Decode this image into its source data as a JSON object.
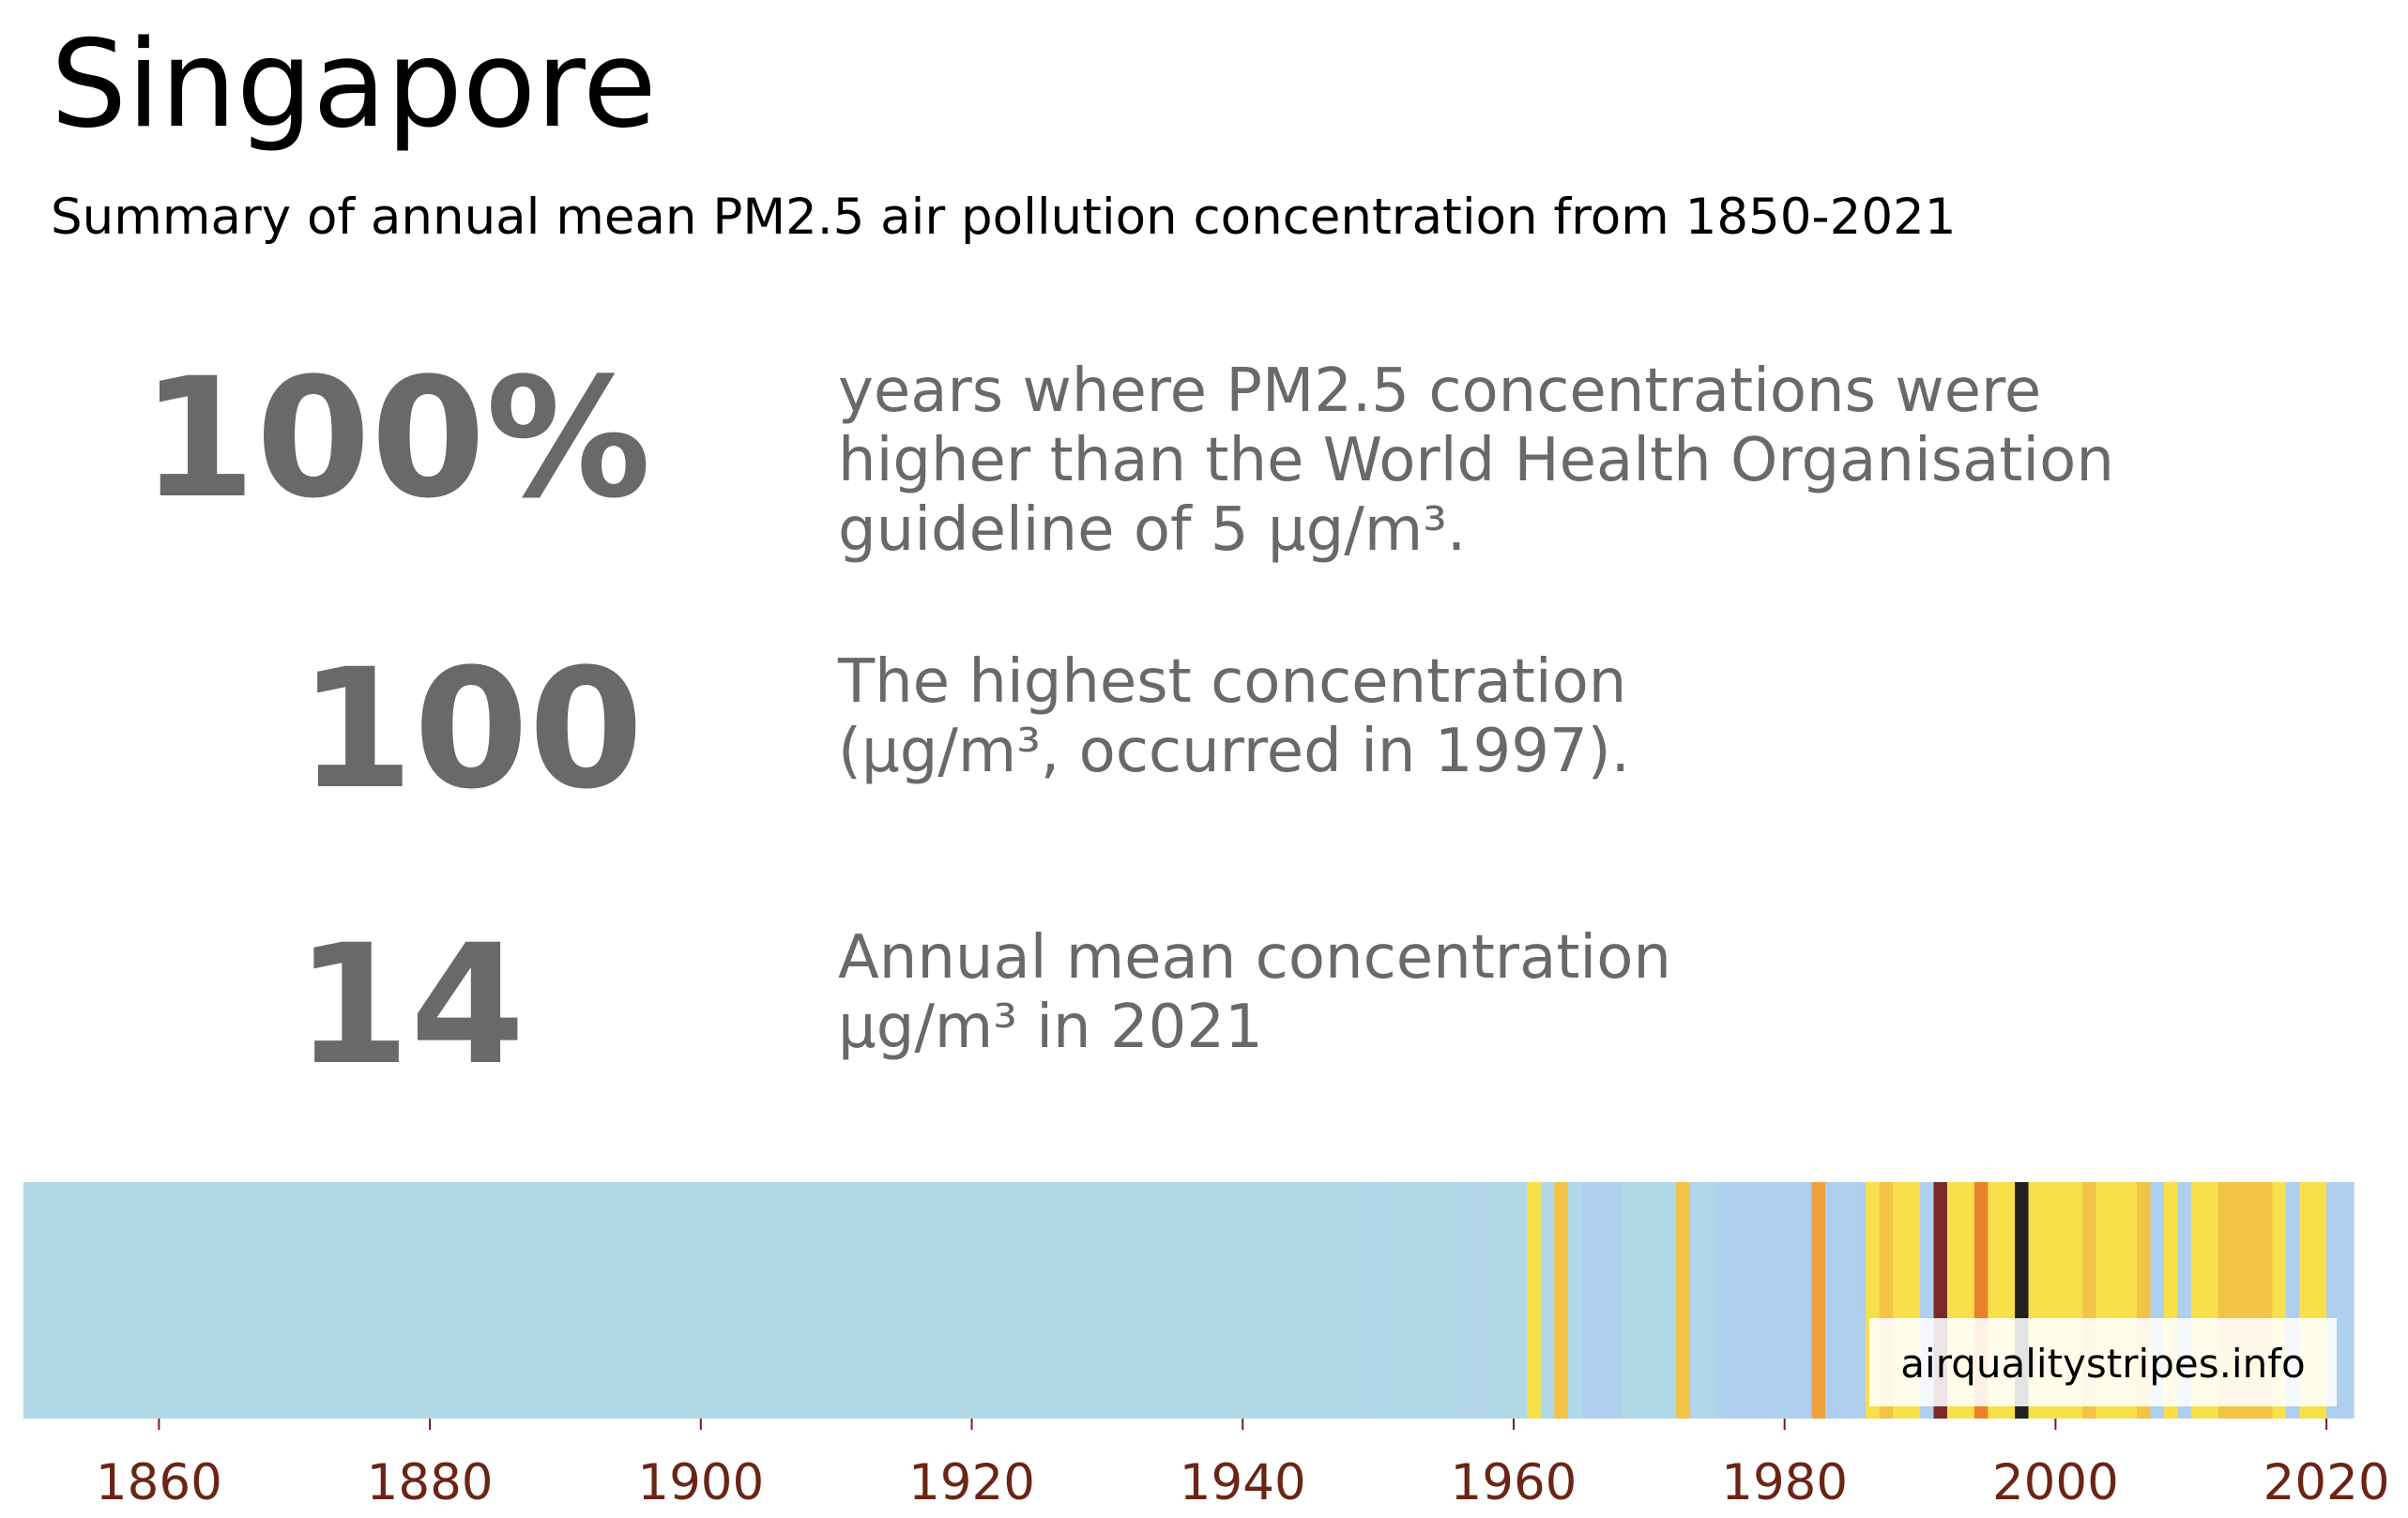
{
  "header": {
    "title": "Singapore",
    "subtitle": "Summary of annual mean PM2.5 air pollution concentration from 1850-2021"
  },
  "stats": [
    {
      "value": "100%",
      "description_lines": [
        "years where PM2.5 concentrations were",
        "higher than the World Health Organisation",
        "guideline of 5 µg/m³."
      ]
    },
    {
      "value": "100",
      "description_lines": [
        "The highest concentration",
        "(µg/m³, occurred in 1997)."
      ]
    },
    {
      "value": "14",
      "description_lines": [
        "Annual mean concentration",
        "µg/m³ in 2021"
      ]
    }
  ],
  "watermark": "airqualitystripes.info",
  "colors": {
    "text_gray": "#696969",
    "tick_color": "#6b2415",
    "light_blue": "#b0d9e8",
    "pale_blue": "#aecfee",
    "yellow": "#f8e04a",
    "amber": "#f2c346",
    "orange": "#f2a03a",
    "dark_orange": "#e8822a",
    "maroon": "#7a2a2a",
    "black": "#222222"
  },
  "chart_data": {
    "type": "heatmap",
    "title": "",
    "xlim": [
      1850,
      2022
    ],
    "x_ticks": [
      "1860",
      "1880",
      "1900",
      "1920",
      "1940",
      "1960",
      "1980",
      "2000",
      "2020"
    ],
    "stripes": [
      {
        "start": 1850,
        "end": 1949,
        "color": "#b0d9e8"
      },
      {
        "start": 1949,
        "end": 1950,
        "color": "#b2d5ec"
      },
      {
        "start": 1950,
        "end": 1956,
        "color": "#b0d9e8"
      },
      {
        "start": 1956,
        "end": 1958,
        "color": "#b2d5ec"
      },
      {
        "start": 1958,
        "end": 1961,
        "color": "#b0d9e8"
      },
      {
        "start": 1961,
        "end": 1962,
        "color": "#f8e04a"
      },
      {
        "start": 1962,
        "end": 1963,
        "color": "#b0d9e8"
      },
      {
        "start": 1963,
        "end": 1964,
        "color": "#f2c346"
      },
      {
        "start": 1964,
        "end": 1965,
        "color": "#b0d9e8"
      },
      {
        "start": 1965,
        "end": 1968,
        "color": "#aecfee"
      },
      {
        "start": 1968,
        "end": 1972,
        "color": "#b0d9e8"
      },
      {
        "start": 1972,
        "end": 1973,
        "color": "#f2c346"
      },
      {
        "start": 1973,
        "end": 1974,
        "color": "#b2d5ec"
      },
      {
        "start": 1974,
        "end": 1975,
        "color": "#b0d9e8"
      },
      {
        "start": 1975,
        "end": 1982,
        "color": "#aecfee"
      },
      {
        "start": 1982,
        "end": 1983,
        "color": "#f2a03a"
      },
      {
        "start": 1983,
        "end": 1986,
        "color": "#aecfee"
      },
      {
        "start": 1986,
        "end": 1987,
        "color": "#f8e04a"
      },
      {
        "start": 1987,
        "end": 1988,
        "color": "#f2c346"
      },
      {
        "start": 1988,
        "end": 1990,
        "color": "#f8e04a"
      },
      {
        "start": 1990,
        "end": 1991,
        "color": "#aecfee"
      },
      {
        "start": 1991,
        "end": 1992,
        "color": "#7a2a2a"
      },
      {
        "start": 1992,
        "end": 1994,
        "color": "#f8e04a"
      },
      {
        "start": 1994,
        "end": 1995,
        "color": "#e8822a"
      },
      {
        "start": 1995,
        "end": 1997,
        "color": "#f8e04a"
      },
      {
        "start": 1997,
        "end": 1998,
        "color": "#222222"
      },
      {
        "start": 1998,
        "end": 2002,
        "color": "#f8e04a"
      },
      {
        "start": 2002,
        "end": 2003,
        "color": "#f2c346"
      },
      {
        "start": 2003,
        "end": 2006,
        "color": "#f8e04a"
      },
      {
        "start": 2006,
        "end": 2007,
        "color": "#f2c346"
      },
      {
        "start": 2007,
        "end": 2008,
        "color": "#aecfee"
      },
      {
        "start": 2008,
        "end": 2009,
        "color": "#f8e04a"
      },
      {
        "start": 2009,
        "end": 2010,
        "color": "#aecfee"
      },
      {
        "start": 2010,
        "end": 2012,
        "color": "#f8e04a"
      },
      {
        "start": 2012,
        "end": 2016,
        "color": "#f2c346"
      },
      {
        "start": 2016,
        "end": 2017,
        "color": "#f8e04a"
      },
      {
        "start": 2017,
        "end": 2018,
        "color": "#aecfee"
      },
      {
        "start": 2018,
        "end": 2020,
        "color": "#f8e04a"
      },
      {
        "start": 2020,
        "end": 2022,
        "color": "#aecfee"
      }
    ]
  }
}
